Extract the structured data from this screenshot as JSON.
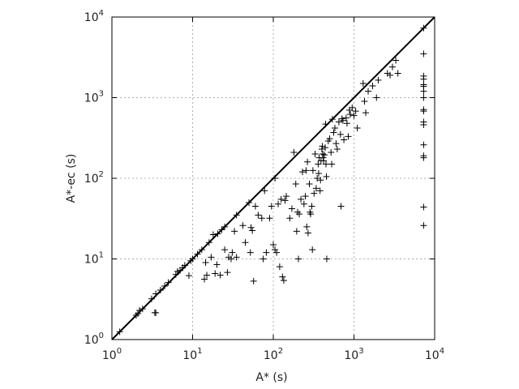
{
  "chart_data": {
    "type": "scatter",
    "xlabel": "A* (s)",
    "ylabel": "A*-ec (s)",
    "xscale": "log",
    "yscale": "log",
    "xlim": [
      1,
      10000
    ],
    "ylim": [
      1,
      10000
    ],
    "grid": true,
    "reference_line": "y = x",
    "marker": "plus",
    "x_ticks": [
      {
        "base": "10",
        "exp": "0",
        "value": 1
      },
      {
        "base": "10",
        "exp": "1",
        "value": 10
      },
      {
        "base": "10",
        "exp": "2",
        "value": 100
      },
      {
        "base": "10",
        "exp": "3",
        "value": 1000
      },
      {
        "base": "10",
        "exp": "4",
        "value": 10000
      }
    ],
    "y_ticks": [
      {
        "base": "10",
        "exp": "0",
        "value": 1
      },
      {
        "base": "10",
        "exp": "1",
        "value": 10
      },
      {
        "base": "10",
        "exp": "2",
        "value": 100
      },
      {
        "base": "10",
        "exp": "3",
        "value": 1000
      },
      {
        "base": "10",
        "exp": "4",
        "value": 10000
      }
    ],
    "points": [
      [
        1.25,
        1.25
      ],
      [
        2,
        2
      ],
      [
        2.1,
        2.1
      ],
      [
        2.2,
        2.3
      ],
      [
        2.4,
        2.4
      ],
      [
        3.1,
        3.2
      ],
      [
        3.4,
        2.15
      ],
      [
        3.5,
        2.15
      ],
      [
        3.5,
        3.7
      ],
      [
        4,
        4.1
      ],
      [
        4.5,
        4.6
      ],
      [
        5,
        5.1
      ],
      [
        6.2,
        6.4
      ],
      [
        6.5,
        7
      ],
      [
        7,
        7.2
      ],
      [
        7.5,
        7.8
      ],
      [
        8,
        8.3
      ],
      [
        9,
        6.2
      ],
      [
        9.5,
        9.5
      ],
      [
        10,
        10
      ],
      [
        11.5,
        11.5
      ],
      [
        13,
        13
      ],
      [
        14,
        5.6
      ],
      [
        14.5,
        9
      ],
      [
        15,
        6.3
      ],
      [
        16,
        16
      ],
      [
        17,
        10.5
      ],
      [
        18,
        20
      ],
      [
        19,
        6.6
      ],
      [
        20,
        8.5
      ],
      [
        20.5,
        20.5
      ],
      [
        22,
        6.3
      ],
      [
        23,
        23
      ],
      [
        25,
        13
      ],
      [
        25,
        25
      ],
      [
        27,
        6.8
      ],
      [
        28,
        10.5
      ],
      [
        30,
        10
      ],
      [
        31,
        12
      ],
      [
        33,
        22
      ],
      [
        35,
        35
      ],
      [
        35,
        10.5
      ],
      [
        42,
        26
      ],
      [
        45,
        16
      ],
      [
        50,
        50
      ],
      [
        52,
        12
      ],
      [
        53,
        24.5
      ],
      [
        55,
        22.5
      ],
      [
        57,
        5.3
      ],
      [
        60,
        45
      ],
      [
        65,
        35
      ],
      [
        72,
        32
      ],
      [
        75,
        10
      ],
      [
        78,
        70
      ],
      [
        82,
        12
      ],
      [
        90,
        32
      ],
      [
        95,
        45
      ],
      [
        100,
        15
      ],
      [
        105,
        100
      ],
      [
        105,
        13
      ],
      [
        110,
        12
      ],
      [
        115,
        48
      ],
      [
        120,
        8
      ],
      [
        125,
        55
      ],
      [
        130,
        6
      ],
      [
        135,
        5.4
      ],
      [
        140,
        53
      ],
      [
        145,
        60
      ],
      [
        160,
        32
      ],
      [
        170,
        42
      ],
      [
        180,
        210
      ],
      [
        190,
        85
      ],
      [
        195,
        22
      ],
      [
        200,
        38
      ],
      [
        205,
        10
      ],
      [
        210,
        36
      ],
      [
        220,
        55
      ],
      [
        230,
        120
      ],
      [
        240,
        48
      ],
      [
        250,
        60
      ],
      [
        255,
        125
      ],
      [
        260,
        25
      ],
      [
        265,
        160
      ],
      [
        270,
        21
      ],
      [
        280,
        85
      ],
      [
        285,
        38
      ],
      [
        290,
        36
      ],
      [
        300,
        45
      ],
      [
        305,
        13
      ],
      [
        310,
        125
      ],
      [
        320,
        65
      ],
      [
        330,
        200
      ],
      [
        340,
        75
      ],
      [
        350,
        100
      ],
      [
        360,
        150
      ],
      [
        365,
        115
      ],
      [
        370,
        180
      ],
      [
        380,
        70
      ],
      [
        385,
        95
      ],
      [
        390,
        165
      ],
      [
        400,
        230
      ],
      [
        405,
        250
      ],
      [
        410,
        200
      ],
      [
        415,
        180
      ],
      [
        420,
        165
      ],
      [
        430,
        195
      ],
      [
        440,
        240
      ],
      [
        445,
        470
      ],
      [
        450,
        150
      ],
      [
        455,
        105
      ],
      [
        460,
        10
      ],
      [
        480,
        290
      ],
      [
        500,
        310
      ],
      [
        520,
        210
      ],
      [
        530,
        150
      ],
      [
        540,
        540
      ],
      [
        560,
        370
      ],
      [
        580,
        420
      ],
      [
        600,
        270
      ],
      [
        620,
        230
      ],
      [
        650,
        500
      ],
      [
        680,
        350
      ],
      [
        690,
        45
      ],
      [
        710,
        550
      ],
      [
        730,
        520
      ],
      [
        750,
        300
      ],
      [
        800,
        560
      ],
      [
        820,
        480
      ],
      [
        850,
        330
      ],
      [
        880,
        700
      ],
      [
        900,
        620
      ],
      [
        950,
        750
      ],
      [
        1000,
        600
      ],
      [
        1050,
        680
      ],
      [
        1100,
        420
      ],
      [
        1300,
        1500
      ],
      [
        1350,
        900
      ],
      [
        1400,
        650
      ],
      [
        1500,
        1200
      ],
      [
        1700,
        1400
      ],
      [
        1900,
        1000
      ],
      [
        2000,
        1650
      ],
      [
        2600,
        2000
      ],
      [
        2800,
        1900
      ],
      [
        3000,
        2400
      ],
      [
        3300,
        2900
      ],
      [
        3500,
        2000
      ],
      [
        7300,
        7300
      ],
      [
        7300,
        3500
      ],
      [
        7300,
        1850
      ],
      [
        7300,
        1700
      ],
      [
        7300,
        1450
      ],
      [
        7300,
        1380
      ],
      [
        7300,
        1200
      ],
      [
        7300,
        1000
      ],
      [
        7300,
        710
      ],
      [
        7300,
        680
      ],
      [
        7300,
        500
      ],
      [
        7300,
        460
      ],
      [
        7300,
        260
      ],
      [
        7300,
        190
      ],
      [
        7300,
        180
      ],
      [
        7300,
        44
      ],
      [
        7300,
        26
      ]
    ]
  }
}
